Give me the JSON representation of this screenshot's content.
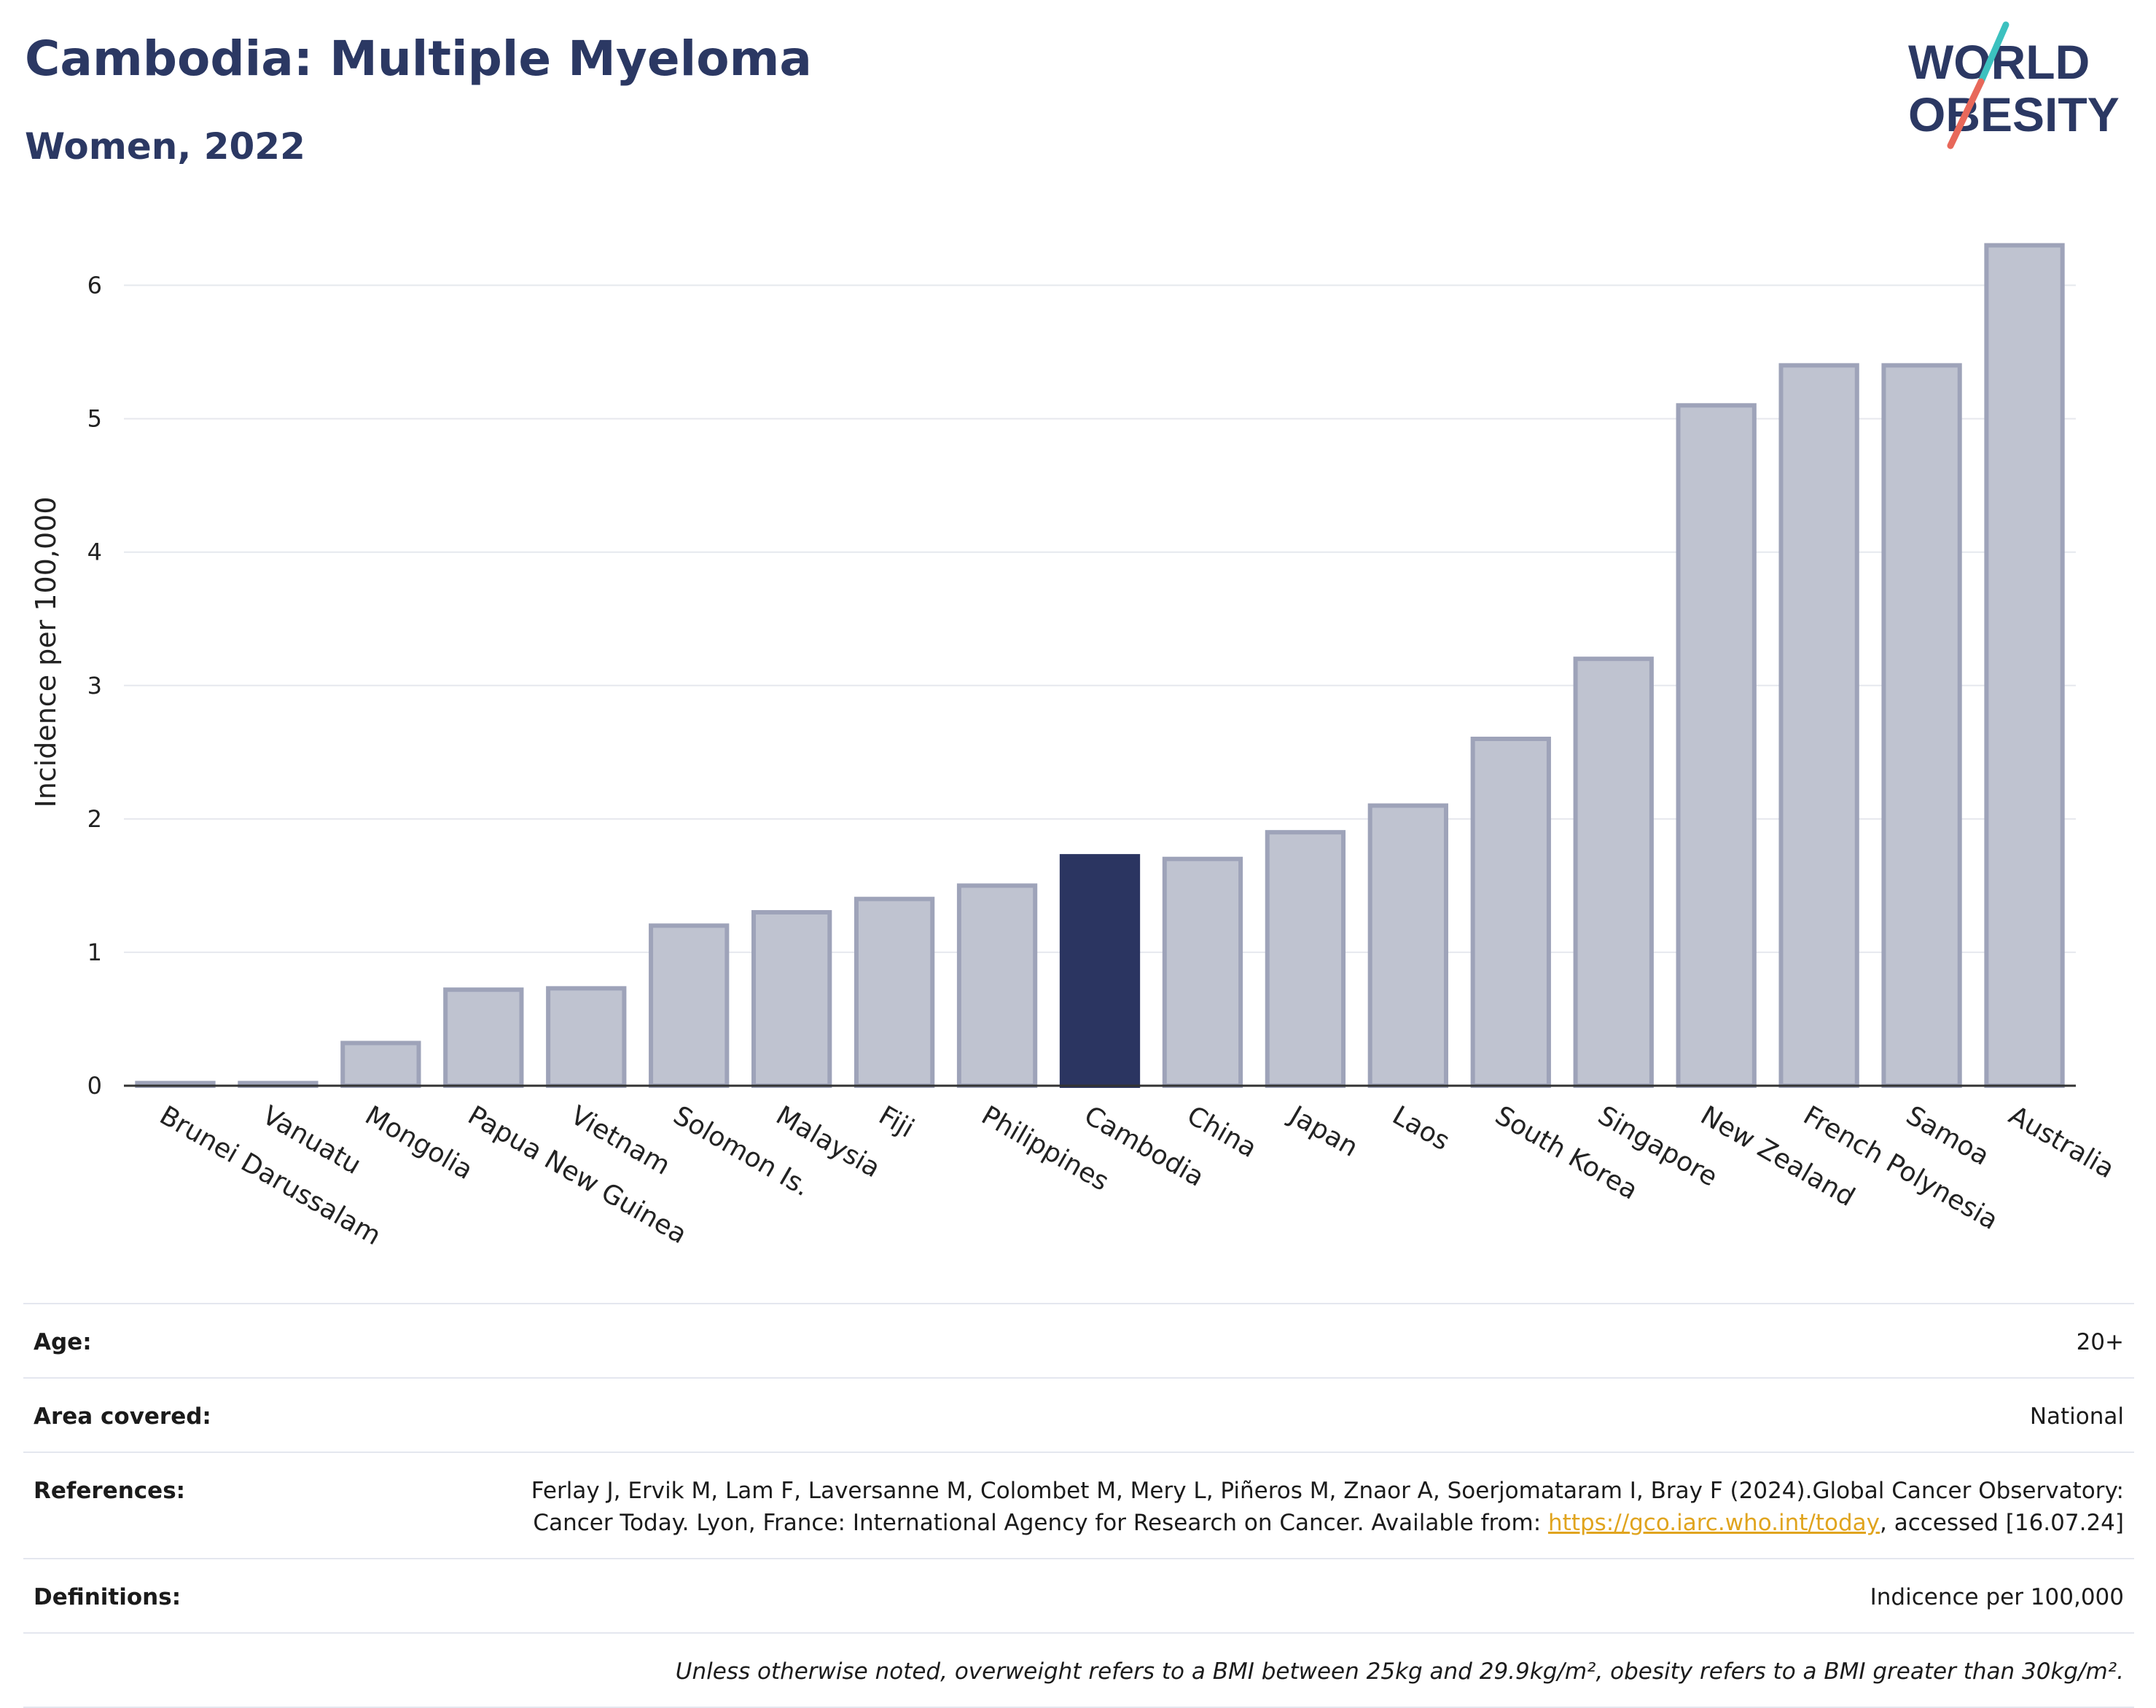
{
  "header": {
    "title": "Cambodia: Multiple Myeloma",
    "subtitle": "Women, 2022"
  },
  "logo": {
    "line1": "WORLD",
    "line2": "OBESITY"
  },
  "chart_data": {
    "type": "bar",
    "ylabel": "Incidence per 100,000",
    "ylim": [
      0,
      6.5
    ],
    "yticks": [
      0,
      1,
      2,
      3,
      4,
      5,
      6
    ],
    "grid": true,
    "highlight": "Cambodia",
    "categories": [
      "Brunei Darussalam",
      "Vanuatu",
      "Mongolia",
      "Papua New Guinea",
      "Vietnam",
      "Solomon Is.",
      "Malaysia",
      "Fiji",
      "Philippines",
      "Cambodia",
      "China",
      "Japan",
      "Laos",
      "South Korea",
      "Singapore",
      "New Zealand",
      "French Polynesia",
      "Samoa",
      "Australia"
    ],
    "values": [
      0.02,
      0.02,
      0.32,
      0.72,
      0.73,
      1.2,
      1.3,
      1.4,
      1.5,
      1.72,
      1.7,
      1.9,
      2.1,
      2.6,
      3.2,
      5.1,
      5.4,
      5.4,
      6.3
    ],
    "colors": {
      "bar": "#bfc3d0",
      "bar_edge": "#9ea3b9",
      "highlight": "#2b3561",
      "grid": "#e6e8ee",
      "axis": "#333333"
    }
  },
  "meta": {
    "age_label": "Age:",
    "age_value": "20+",
    "area_label": "Area covered:",
    "area_value": "National",
    "references_label": "References:",
    "references_text_1": "Ferlay J, Ervik M, Lam F, Laversanne M, Colombet M, Mery L, Piñeros M, Znaor A, Soerjomataram I, Bray F (2024).Global Cancer Observatory: Cancer Today. Lyon, France: International Agency for Research on Cancer. Available from: ",
    "references_link": "https://gco.iarc.who.int/today",
    "references_text_2": ", accessed [16.07.24]",
    "definitions_label": "Definitions:",
    "definitions_value": "Indicence per 100,000",
    "note": "Unless otherwise noted, overweight refers to a BMI between 25kg and 29.9kg/m², obesity refers to a BMI greater than 30kg/m²."
  }
}
